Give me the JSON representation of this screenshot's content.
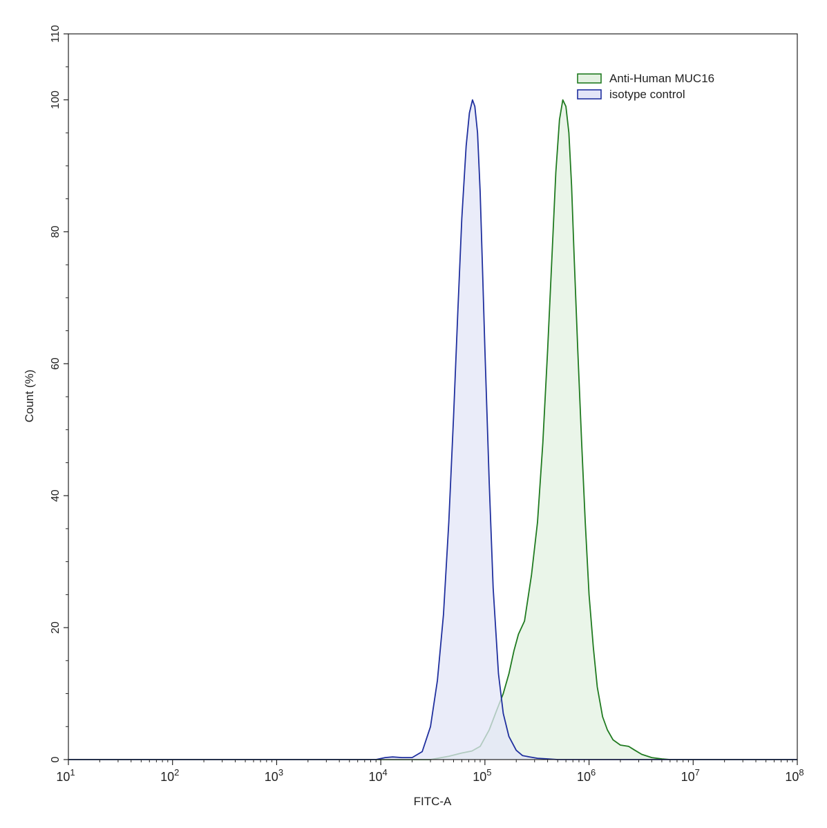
{
  "chart_data": {
    "type": "area",
    "title": "",
    "xlabel": "FITC-A",
    "ylabel": "Count (%)",
    "x_scale": "log",
    "xlim": [
      10,
      100000000
    ],
    "ylim": [
      0,
      110
    ],
    "x_ticks": [
      {
        "base": "10",
        "exp": "1"
      },
      {
        "base": "10",
        "exp": "2"
      },
      {
        "base": "10",
        "exp": "3"
      },
      {
        "base": "10",
        "exp": "4"
      },
      {
        "base": "10",
        "exp": "5"
      },
      {
        "base": "10",
        "exp": "6"
      },
      {
        "base": "10",
        "exp": "7"
      },
      {
        "base": "10",
        "exp": "8"
      }
    ],
    "y_ticks": [
      "0",
      "20",
      "40",
      "60",
      "80",
      "100",
      "110"
    ],
    "grid": false,
    "legend_position": "top-right",
    "series": [
      {
        "name": "Anti-Human MUC16",
        "line_color": "#1f7a1f",
        "fill_color": "#e3f1e1",
        "x": [
          10,
          30000,
          45000,
          60000,
          75000,
          90000,
          110000,
          130000,
          150000,
          170000,
          190000,
          210000,
          240000,
          280000,
          320000,
          360000,
          400000,
          440000,
          480000,
          520000,
          560000,
          600000,
          640000,
          680000,
          720000,
          780000,
          850000,
          920000,
          1000000,
          1100000,
          1200000,
          1350000,
          1500000,
          1700000,
          2000000,
          2400000,
          2700000,
          3200000,
          4000000,
          5000000,
          6000000,
          100000000
        ],
        "y": [
          0,
          0,
          0.5,
          1,
          1.3,
          2,
          4.5,
          7.5,
          10,
          13,
          16.5,
          19,
          21,
          28,
          36,
          48,
          62,
          76,
          89,
          97,
          100,
          99,
          95,
          87,
          76,
          62,
          48,
          36,
          25,
          17,
          11,
          6.5,
          4.5,
          3,
          2.2,
          2,
          1.5,
          0.8,
          0.3,
          0.1,
          0,
          0
        ]
      },
      {
        "name": "isotype control",
        "line_color": "#1f2f9e",
        "fill_color": "#e3e5f7",
        "x": [
          10,
          9000,
          11000,
          13000,
          16000,
          20000,
          25000,
          30000,
          35000,
          40000,
          45000,
          50000,
          55000,
          60000,
          66000,
          71000,
          76000,
          80000,
          85000,
          90000,
          95000,
          100000,
          110000,
          120000,
          135000,
          150000,
          170000,
          200000,
          230000,
          270000,
          320000,
          400000,
          500000,
          100000000
        ],
        "y": [
          0,
          0,
          0.3,
          0.4,
          0.3,
          0.3,
          1.2,
          5,
          12,
          22,
          36,
          52,
          68,
          82,
          93,
          98,
          100,
          99,
          95,
          86,
          74,
          62,
          42,
          26,
          13,
          7,
          3.5,
          1.4,
          0.6,
          0.4,
          0.2,
          0.1,
          0,
          0
        ]
      }
    ]
  }
}
